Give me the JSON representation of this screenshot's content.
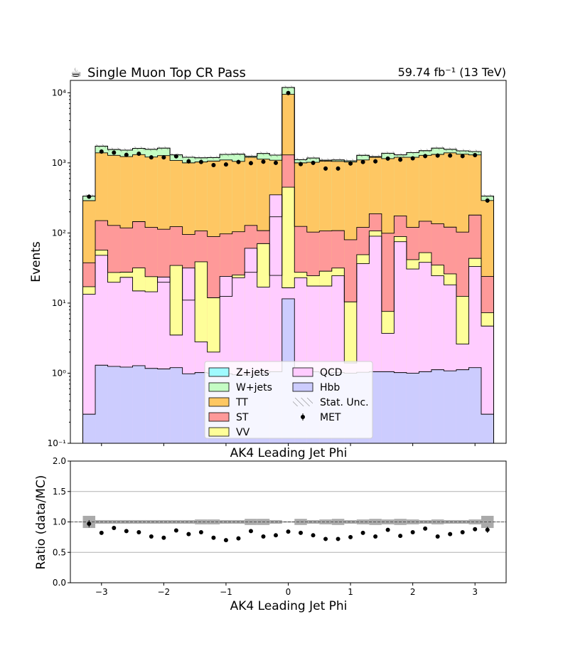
{
  "chart_data": [
    {
      "type": "bar",
      "subtype": "stacked-histogram",
      "title": "Single Muon Top CR Pass",
      "title_icon": "coffee-cup-icon",
      "lumi_label": "59.74 fb⁻¹ (13 TeV)",
      "xlabel": "AK4 Leading Jet Phi",
      "ylabel": "Events",
      "yscale": "log",
      "ylim": [
        0.1,
        15000
      ],
      "xlim": [
        -3.5,
        3.5
      ],
      "xticks": [
        -3,
        -2,
        -1,
        0,
        1,
        2,
        3
      ],
      "xtick_labels": [
        "−3",
        "−2",
        "−1",
        "0",
        "1",
        "2",
        "3"
      ],
      "yticks": [
        0.1,
        1,
        10,
        100,
        1000,
        10000
      ],
      "ytick_labels": [
        "10⁻¹",
        "10⁰",
        "10¹",
        "10²",
        "10³",
        "10⁴"
      ],
      "bin_edges": [
        -3.3,
        -3.1,
        -2.9,
        -2.7,
        -2.5,
        -2.3,
        -2.1,
        -1.9,
        -1.7,
        -1.5,
        -1.3,
        -1.1,
        -0.9,
        -0.7,
        -0.5,
        -0.3,
        -0.1,
        0.1,
        0.3,
        0.5,
        0.7,
        0.9,
        1.1,
        1.3,
        1.5,
        1.7,
        1.9,
        2.1,
        2.3,
        2.5,
        2.7,
        2.9,
        3.1,
        3.3
      ],
      "grid": false,
      "legend_position": "lower-center",
      "legend": [
        {
          "name": "Z+jets",
          "color": "#9ffaff"
        },
        {
          "name": "QCD",
          "color": "#ffccff"
        },
        {
          "name": "W+jets",
          "color": "#c4fcc4"
        },
        {
          "name": "Hbb",
          "color": "#ccccfe"
        },
        {
          "name": "TT",
          "color": "#fec763"
        },
        {
          "name": "Stat. Unc.",
          "color": "#888888"
        },
        {
          "name": "ST",
          "color": "#fe9999"
        },
        {
          "name": "MET",
          "color": "#000000"
        },
        {
          "name": "VV",
          "color": "#fefe99"
        }
      ],
      "series": [
        {
          "name": "Hbb",
          "color": "#ccccfe",
          "values": [
            0.26,
            1.3,
            1.25,
            1.22,
            1.28,
            1.17,
            1.15,
            1.2,
            0.98,
            1.02,
            1.0,
            0.98,
            0.95,
            0.94,
            1.0,
            1.05,
            11.5,
            1.0,
            1.05,
            1.0,
            1.02,
            1.0,
            1.03,
            1.05,
            1.05,
            1.02,
            1.0,
            1.05,
            1.12,
            1.08,
            1.12,
            1.2,
            0.26
          ]
        },
        {
          "name": "QCD",
          "color": "#ffccff",
          "values": [
            13.4,
            48,
            19.8,
            23.3,
            14.9,
            14.5,
            23.5,
            3.5,
            31.6,
            2.8,
            2.0,
            24.0,
            23.0,
            60.5,
            16.9,
            350,
            16.5,
            23.0,
            17.5,
            17.5,
            24.5,
            1.4,
            36.5,
            90,
            3.7,
            75,
            30.6,
            38.1,
            24.5,
            18.2,
            2.6,
            33.3,
            4.7
          ]
        },
        {
          "name": "VV",
          "color": "#fefe99",
          "values": [
            17.1,
            57,
            27.3,
            27.6,
            31.7,
            23.8,
            19.8,
            34.4,
            11.0,
            38.8,
            11.9,
            12.5,
            25.2,
            27.5,
            70.5,
            24.8,
            450,
            27.5,
            24.5,
            28.5,
            31.6,
            10.4,
            49,
            107,
            7.6,
            89,
            41.6,
            52.4,
            34.8,
            26.1,
            12.5,
            43.4,
            7.3
          ]
        },
        {
          "name": "ST",
          "color": "#fe9999",
          "values": [
            37.6,
            150,
            128,
            118,
            145,
            120,
            113,
            123,
            95,
            107,
            89,
            97,
            104,
            128,
            108,
            170,
            1300,
            124,
            103,
            107,
            108,
            80,
            120,
            188,
            99,
            175,
            120,
            147,
            135,
            121,
            103,
            180,
            24
          ]
        },
        {
          "name": "TT",
          "color": "#fec763",
          "values": [
            289,
            1390,
            1280,
            1230,
            1310,
            1210,
            1270,
            1080,
            1000,
            1030,
            1060,
            1100,
            1050,
            1200,
            1130,
            1090,
            9500,
            1000,
            1020,
            1060,
            1050,
            1030,
            1100,
            1200,
            1150,
            1200,
            1200,
            1280,
            1320,
            1390,
            1330,
            1300,
            290
          ]
        },
        {
          "name": "W+jets",
          "color": "#c4fcc4",
          "values": [
            335,
            1730,
            1550,
            1520,
            1610,
            1560,
            1620,
            1300,
            1200,
            1180,
            1190,
            1320,
            1330,
            1240,
            1360,
            1290,
            11900,
            1110,
            1170,
            1090,
            1100,
            1070,
            1280,
            1230,
            1370,
            1300,
            1400,
            1490,
            1620,
            1560,
            1480,
            1450,
            335
          ]
        },
        {
          "name": "Z+jets",
          "color": "#9ffaff",
          "values": [
            336,
            1732,
            1552,
            1522,
            1612,
            1562,
            1622,
            1302,
            1202,
            1182,
            1192,
            1322,
            1332,
            1242,
            1362,
            1292,
            11920,
            1112,
            1172,
            1092,
            1102,
            1072,
            1282,
            1232,
            1372,
            1302,
            1402,
            1492,
            1622,
            1562,
            1482,
            1452,
            336
          ]
        }
      ],
      "data_series": {
        "name": "MET",
        "color": "#000000",
        "x": [
          -3.2,
          -3.0,
          -2.8,
          -2.6,
          -2.4,
          -2.2,
          -2.0,
          -1.8,
          -1.6,
          -1.4,
          -1.2,
          -1.0,
          -0.8,
          -0.6,
          -0.4,
          -0.2,
          0.0,
          0.2,
          0.4,
          0.6,
          0.8,
          1.0,
          1.2,
          1.4,
          1.6,
          1.8,
          2.0,
          2.2,
          2.4,
          2.6,
          2.8,
          3.0,
          3.2
        ],
        "y": [
          330,
          1450,
          1400,
          1300,
          1350,
          1200,
          1200,
          1240,
          1050,
          1030,
          930,
          950,
          1030,
          990,
          1040,
          1000,
          9900,
          960,
          1000,
          830,
          830,
          980,
          1030,
          1050,
          1150,
          1110,
          1160,
          1250,
          1270,
          1270,
          1250,
          1290,
          290
        ]
      }
    },
    {
      "type": "scatter",
      "subtype": "ratio-panel",
      "title": "AK4 Leading Jet Phi",
      "xlabel": "AK4 Leading Jet Phi",
      "ylabel": "Ratio (data/MC)",
      "xlim": [
        -3.5,
        3.5
      ],
      "ylim": [
        0.0,
        2.0
      ],
      "xticks": [
        -3,
        -2,
        -1,
        0,
        1,
        2,
        3
      ],
      "xtick_labels": [
        "−3",
        "−2",
        "−1",
        "0",
        "1",
        "2",
        "3"
      ],
      "yticks": [
        0.0,
        0.5,
        1.0,
        1.5,
        2.0
      ],
      "ytick_labels": [
        "0.0",
        "0.5",
        "1.0",
        "1.5",
        "2.0"
      ],
      "grid": true,
      "reference_line": 1.0,
      "x": [
        -3.2,
        -3.0,
        -2.8,
        -2.6,
        -2.4,
        -2.2,
        -2.0,
        -1.8,
        -1.6,
        -1.4,
        -1.2,
        -1.0,
        -0.8,
        -0.6,
        -0.4,
        -0.2,
        0.0,
        0.2,
        0.4,
        0.6,
        0.8,
        1.0,
        1.2,
        1.4,
        1.6,
        1.8,
        2.0,
        2.2,
        2.4,
        2.6,
        2.8,
        3.0,
        3.2
      ],
      "y": [
        0.97,
        0.82,
        0.9,
        0.85,
        0.83,
        0.76,
        0.74,
        0.86,
        0.8,
        0.83,
        0.74,
        0.7,
        0.73,
        0.85,
        0.76,
        0.78,
        0.84,
        0.82,
        0.78,
        0.72,
        0.72,
        0.75,
        0.82,
        0.76,
        0.87,
        0.77,
        0.83,
        0.89,
        0.76,
        0.8,
        0.83,
        0.88,
        0.87
      ],
      "yerr": [
        0.06,
        0.02,
        0.02,
        0.02,
        0.02,
        0.02,
        0.02,
        0.02,
        0.02,
        0.02,
        0.02,
        0.02,
        0.02,
        0.02,
        0.02,
        0.02,
        0.01,
        0.02,
        0.02,
        0.02,
        0.02,
        0.02,
        0.02,
        0.02,
        0.02,
        0.02,
        0.02,
        0.02,
        0.02,
        0.02,
        0.02,
        0.02,
        0.05
      ],
      "unc_band": [
        0.1,
        0.03,
        0.03,
        0.03,
        0.03,
        0.03,
        0.03,
        0.03,
        0.03,
        0.04,
        0.04,
        0.03,
        0.03,
        0.05,
        0.05,
        0.03,
        0.01,
        0.05,
        0.03,
        0.04,
        0.05,
        0.03,
        0.04,
        0.05,
        0.04,
        0.05,
        0.04,
        0.03,
        0.04,
        0.03,
        0.03,
        0.04,
        0.1
      ]
    }
  ]
}
